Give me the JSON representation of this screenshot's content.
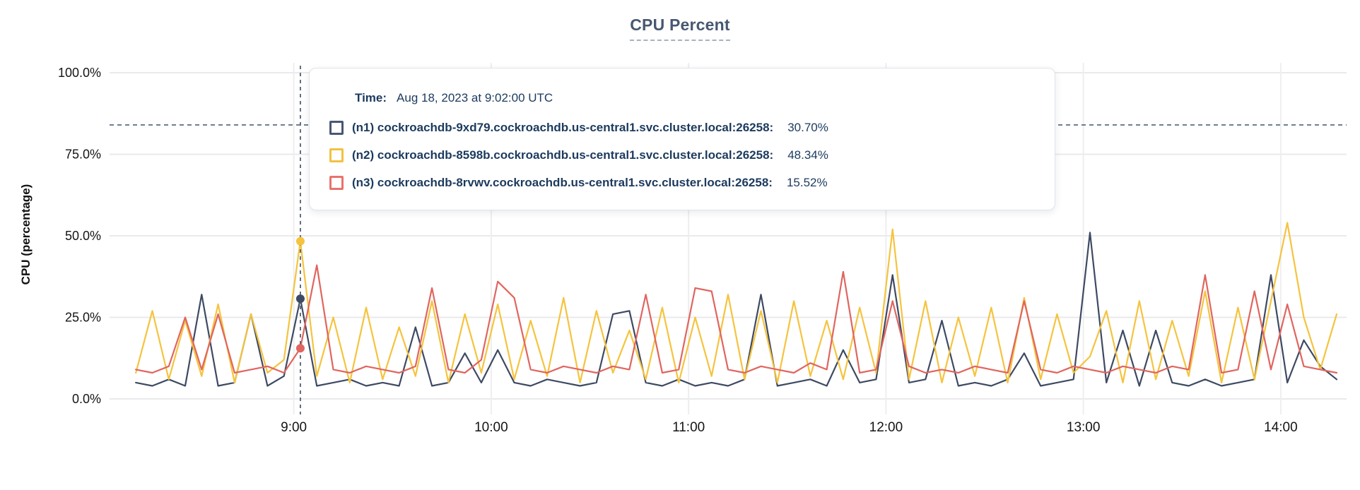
{
  "header": {
    "title": "CPU Percent"
  },
  "tooltip": {
    "time_label": "Time:",
    "time_value": "Aug 18, 2023 at 9:02:00 UTC",
    "rows": [
      {
        "id": "n1",
        "label": "(n1) cockroachdb-9xd79.cockroachdb.us-central1.svc.cluster.local:26258:",
        "value": "30.70%",
        "color": "#475872"
      },
      {
        "id": "n2",
        "label": "(n2) cockroachdb-8598b.cockroachdb.us-central1.svc.cluster.local:26258:",
        "value": "48.34%",
        "color": "#f2c141"
      },
      {
        "id": "n3",
        "label": "(n3) cockroachdb-8rvwv.cockroachdb.us-central1.svc.cluster.local:26258:",
        "value": "15.52%",
        "color": "#e8736c"
      }
    ]
  },
  "chart_data": {
    "type": "line",
    "title": "CPU Percent",
    "xlabel": "",
    "ylabel": "CPU (percentage)",
    "ylim": [
      0,
      100
    ],
    "xlim_minutes": [
      484,
      860
    ],
    "grid": true,
    "legend_position": "tooltip-overlay",
    "y_ticks": [
      {
        "label": "100.0%",
        "value": 100
      },
      {
        "label": "75.0%",
        "value": 75
      },
      {
        "label": "50.0%",
        "value": 50
      },
      {
        "label": "25.0%",
        "value": 25
      },
      {
        "label": "0.0%",
        "value": 0
      }
    ],
    "x_ticks": [
      {
        "label": "9:00",
        "minutes": 540
      },
      {
        "label": "10:00",
        "minutes": 600
      },
      {
        "label": "11:00",
        "minutes": 660
      },
      {
        "label": "12:00",
        "minutes": 720
      },
      {
        "label": "13:00",
        "minutes": 780
      },
      {
        "label": "14:00",
        "minutes": 840
      }
    ],
    "threshold_line": {
      "value": 84,
      "style": "dashed",
      "color": "#4e6275"
    },
    "crosshair": {
      "minutes": 542,
      "time_label": "9:02",
      "color": "#4e6275",
      "points": [
        {
          "series": "n1",
          "value": 30.7
        },
        {
          "series": "n2",
          "value": 48.34
        },
        {
          "series": "n3",
          "value": 15.52
        }
      ]
    },
    "x_minutes": [
      492,
      497,
      502,
      507,
      512,
      517,
      522,
      527,
      532,
      537,
      542,
      547,
      552,
      557,
      562,
      567,
      572,
      577,
      582,
      587,
      592,
      597,
      602,
      607,
      612,
      617,
      622,
      627,
      632,
      637,
      642,
      647,
      652,
      657,
      662,
      667,
      672,
      677,
      682,
      687,
      692,
      697,
      702,
      707,
      712,
      717,
      722,
      727,
      732,
      737,
      742,
      747,
      752,
      757,
      762,
      767,
      772,
      777,
      782,
      787,
      792,
      797,
      802,
      807,
      812,
      817,
      822,
      827,
      832,
      837,
      842,
      847,
      852,
      857
    ],
    "series": [
      {
        "id": "n1",
        "name": "(n1) cockroachdb-9xd79.cockroachdb.us-central1.svc.cluster.local:26258",
        "color": "#3e4a63",
        "values": [
          5,
          4,
          6,
          4,
          32,
          4,
          5,
          26,
          4,
          7,
          30.7,
          4,
          5,
          6,
          4,
          5,
          4,
          22,
          4,
          5,
          14,
          5,
          15,
          5,
          4,
          6,
          5,
          4,
          5,
          26,
          27,
          5,
          4,
          6,
          4,
          5,
          4,
          6,
          32,
          4,
          5,
          6,
          4,
          15,
          5,
          6,
          38,
          5,
          6,
          24,
          4,
          5,
          4,
          6,
          14,
          4,
          5,
          6,
          51,
          5,
          21,
          4,
          21,
          5,
          4,
          6,
          4,
          5,
          6,
          38,
          5,
          18,
          10,
          6
        ]
      },
      {
        "id": "n2",
        "name": "(n2) cockroachdb-8598b.cockroachdb.us-central1.svc.cluster.local:26258",
        "color": "#f5c33d",
        "values": [
          8,
          27,
          6,
          24,
          7,
          29,
          5,
          26,
          8,
          12,
          48.34,
          7,
          25,
          5,
          28,
          6,
          22,
          7,
          30,
          5,
          26,
          8,
          29,
          6,
          24,
          7,
          31,
          5,
          27,
          8,
          21,
          6,
          28,
          5,
          25,
          7,
          32,
          6,
          27,
          5,
          30,
          7,
          24,
          6,
          28,
          8,
          52,
          6,
          30,
          5,
          25,
          7,
          28,
          5,
          31,
          6,
          26,
          8,
          13,
          27,
          5,
          30,
          6,
          24,
          7,
          33,
          5,
          28,
          6,
          30,
          54,
          25,
          9,
          26
        ]
      },
      {
        "id": "n3",
        "name": "(n3) cockroachdb-8rvwv.cockroachdb.us-central1.svc.cluster.local:26258",
        "color": "#e0655f",
        "values": [
          9,
          8,
          10,
          25,
          9,
          26,
          8,
          9,
          10,
          8,
          15.52,
          41,
          9,
          8,
          10,
          9,
          8,
          10,
          34,
          9,
          8,
          12,
          36,
          31,
          9,
          8,
          10,
          9,
          8,
          10,
          9,
          32,
          8,
          9,
          34,
          33,
          9,
          8,
          10,
          9,
          8,
          11,
          9,
          39,
          8,
          9,
          30,
          10,
          8,
          9,
          8,
          10,
          9,
          8,
          30,
          9,
          8,
          10,
          9,
          8,
          10,
          9,
          8,
          10,
          9,
          38,
          8,
          9,
          33,
          9,
          29,
          10,
          9,
          8
        ]
      }
    ]
  }
}
